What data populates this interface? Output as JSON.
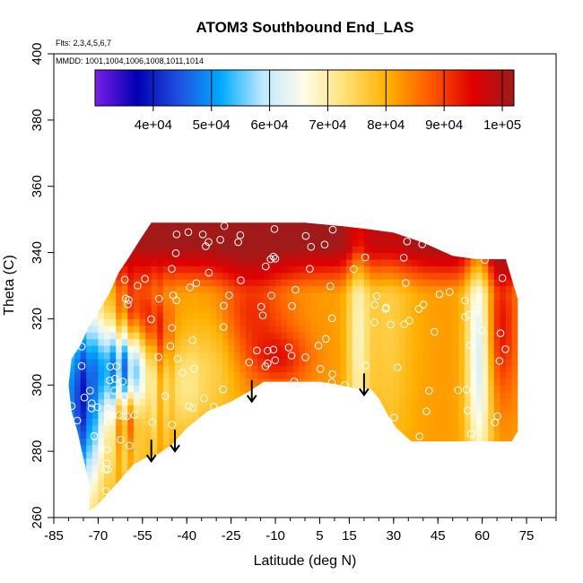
{
  "chart_data": {
    "type": "heatmap",
    "title": "ATOM3 Southbound End_LAS",
    "notes": [
      "Flts: 2,3,4,5,6,7",
      "MMDD: 1001,1004,1006,1008,1011,1014"
    ],
    "xlabel": "Latitude (deg N)",
    "ylabel": "Theta (C)",
    "xlim": [
      -85,
      85
    ],
    "ylim": [
      260,
      400
    ],
    "x_ticks": [
      -85,
      -70,
      -55,
      -40,
      -25,
      -10,
      5,
      15,
      30,
      45,
      60,
      75
    ],
    "x_tick_labels": [
      "-85",
      "-70",
      "-55",
      "-40",
      "-25",
      "-10",
      "5",
      "15",
      "30",
      "45",
      "60",
      "75"
    ],
    "y_ticks": [
      260,
      280,
      300,
      320,
      340,
      360,
      380,
      400
    ],
    "y_tick_labels": [
      "260",
      "280",
      "300",
      "320",
      "340",
      "360",
      "380",
      "400"
    ],
    "colorbar": {
      "range": [
        30000,
        102000
      ],
      "ticks": [
        40000,
        50000,
        60000,
        70000,
        80000,
        90000,
        100000
      ],
      "tick_labels": [
        "4e+04",
        "5e+04",
        "6e+04",
        "7e+04",
        "8e+04",
        "9e+04",
        "1e+05"
      ],
      "colors": [
        "#7a1fe6",
        "#0000b4",
        "#1f4fe0",
        "#00aaff",
        "#bfe8ff",
        "#fffde8",
        "#ffe070",
        "#ffb000",
        "#ff5a00",
        "#e00000",
        "#a01a1a"
      ]
    },
    "bottom_boundary": [
      [
        -73,
        262
      ],
      [
        -70,
        264
      ],
      [
        -66,
        268
      ],
      [
        -62,
        272
      ],
      [
        -58,
        276
      ],
      [
        -54,
        278
      ],
      [
        -50,
        279
      ],
      [
        -45,
        282
      ],
      [
        -40,
        287
      ],
      [
        -33,
        292
      ],
      [
        -25,
        295
      ],
      [
        -19,
        298
      ],
      [
        -14,
        301
      ],
      [
        -5,
        301
      ],
      [
        5,
        301
      ],
      [
        12,
        300
      ],
      [
        17,
        299
      ],
      [
        22,
        299
      ],
      [
        25,
        296
      ],
      [
        28,
        291
      ],
      [
        31,
        287
      ],
      [
        36,
        283
      ],
      [
        70,
        283
      ],
      [
        72,
        286
      ],
      [
        72,
        300
      ],
      [
        72,
        326
      ],
      [
        70,
        332
      ],
      [
        68,
        338
      ],
      [
        58,
        338
      ],
      [
        50,
        339
      ],
      [
        40,
        343
      ],
      [
        30,
        346
      ],
      [
        22,
        347
      ],
      [
        12,
        348
      ],
      [
        0,
        349
      ],
      [
        -10,
        349
      ],
      [
        -20,
        349
      ],
      [
        -35,
        349
      ],
      [
        -52,
        349
      ],
      [
        -55,
        345
      ],
      [
        -60,
        338
      ],
      [
        -63,
        334
      ],
      [
        -66,
        328
      ],
      [
        -70,
        322
      ],
      [
        -73,
        318
      ],
      [
        -76,
        312
      ],
      [
        -79,
        308
      ],
      [
        -80,
        300
      ],
      [
        -79,
        292
      ],
      [
        -77,
        286
      ],
      [
        -75,
        278
      ],
      [
        -73,
        270
      ]
    ],
    "arrows": [
      {
        "lat": -52,
        "theta": 277
      },
      {
        "lat": -44,
        "theta": 280
      },
      {
        "lat": -18,
        "theta": 295
      },
      {
        "lat": 20,
        "theta": 297
      }
    ]
  }
}
